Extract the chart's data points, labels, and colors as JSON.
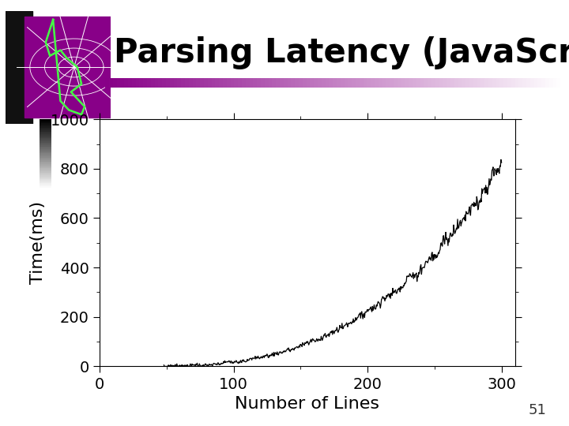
{
  "title": "Parsing Latency (JavaScript)",
  "xlabel": "Number of Lines",
  "ylabel": "Time(ms)",
  "xlim": [
    0,
    310
  ],
  "ylim": [
    0,
    1000
  ],
  "xticks": [
    0,
    100,
    200,
    300
  ],
  "yticks": [
    0,
    200,
    400,
    600,
    800,
    1000
  ],
  "line_color": "#000000",
  "background_color": "#ffffff",
  "title_fontsize": 30,
  "axis_fontsize": 16,
  "tick_fontsize": 14,
  "page_number": "51",
  "logo_color": "#880088",
  "underline_color_left": "#660066",
  "underline_color_right": "#ffffff",
  "seed": 7,
  "x_start": 48,
  "x_end": 300,
  "n_points": 600
}
